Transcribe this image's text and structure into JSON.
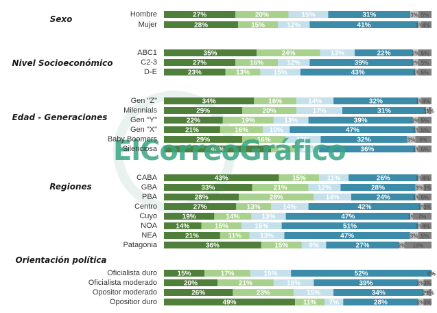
{
  "chart_data": {
    "type": "bar",
    "stacked": true,
    "orientation": "horizontal",
    "colors": [
      "#4f7f3a",
      "#a9d18e",
      "#c5e0eb",
      "#3c8ba8",
      "#bfbfbf",
      "#7f7f7f"
    ],
    "groups": [
      {
        "title": "Sexo",
        "rows": [
          {
            "label": "Hombre",
            "values": [
              27,
              20,
              15,
              31,
              3,
              5
            ]
          },
          {
            "label": "Mujer",
            "values": [
              28,
              15,
              12,
              41,
              1,
              4
            ]
          }
        ]
      },
      {
        "title": "Nivel Socioeconómico",
        "rows": [
          {
            "label": "ABC1",
            "values": [
              35,
              24,
              13,
              22,
              2,
              5
            ]
          },
          {
            "label": "C2-3",
            "values": [
              27,
              16,
              12,
              39,
              2,
              5
            ]
          },
          {
            "label": "D-E",
            "values": [
              23,
              13,
              15,
              43,
              1,
              5
            ]
          }
        ]
      },
      {
        "title": "Edad - Generaciones",
        "rows": [
          {
            "label": "Gen \"Z\"",
            "values": [
              34,
              16,
              14,
              32,
              1,
              4
            ]
          },
          {
            "label": "Milennials",
            "values": [
              29,
              20,
              17,
              31,
              1,
              1
            ]
          },
          {
            "label": "Gen \"Y\"",
            "values": [
              22,
              19,
              13,
              39,
              2,
              5
            ]
          },
          {
            "label": "Gen \"X\"",
            "values": [
              21,
              16,
              10,
              47,
              1,
              5
            ]
          },
          {
            "label": "Baby Boomers",
            "values": [
              29,
              16,
              13,
              32,
              3,
              6
            ]
          },
          {
            "label": "Silenciosa",
            "values": [
              40,
              9,
              9,
              36,
              1,
              5
            ]
          }
        ]
      },
      {
        "title": "Regiones",
        "rows": [
          {
            "label": "CABA",
            "values": [
              43,
              15,
              11,
              26,
              1,
              4
            ]
          },
          {
            "label": "GBA",
            "values": [
              33,
              21,
              12,
              28,
              3,
              3
            ]
          },
          {
            "label": "PBA",
            "values": [
              28,
              28,
              14,
              24,
              1,
              5
            ]
          },
          {
            "label": "Centro",
            "values": [
              27,
              13,
              14,
              42,
              1,
              3
            ]
          },
          {
            "label": "Cuyo",
            "values": [
              19,
              14,
              13,
              47,
              1,
              7
            ]
          },
          {
            "label": "NOA",
            "values": [
              14,
              15,
              15,
              51,
              1,
              4
            ]
          },
          {
            "label": "NEA",
            "values": [
              21,
              11,
              13,
              47,
              3,
              5
            ]
          },
          {
            "label": "Patagonia",
            "values": [
              36,
              15,
              9,
              27,
              2,
              10
            ]
          }
        ]
      },
      {
        "title": "Orientación política",
        "rows": [
          {
            "label": "Oficialista duro",
            "values": [
              15,
              17,
              15,
              52,
              0,
              0
            ]
          },
          {
            "label": "Oficialista moderado",
            "values": [
              20,
              21,
              15,
              39,
              2,
              3
            ]
          },
          {
            "label": "Opositor moderado",
            "values": [
              26,
              23,
              15,
              34,
              2,
              1
            ]
          },
          {
            "label": "Opositior duro",
            "values": [
              49,
              11,
              7,
              28,
              2,
              3
            ]
          }
        ]
      }
    ],
    "xlim": [
      0,
      100
    ],
    "grid": false
  },
  "watermark": "ElCorreoGráfico"
}
